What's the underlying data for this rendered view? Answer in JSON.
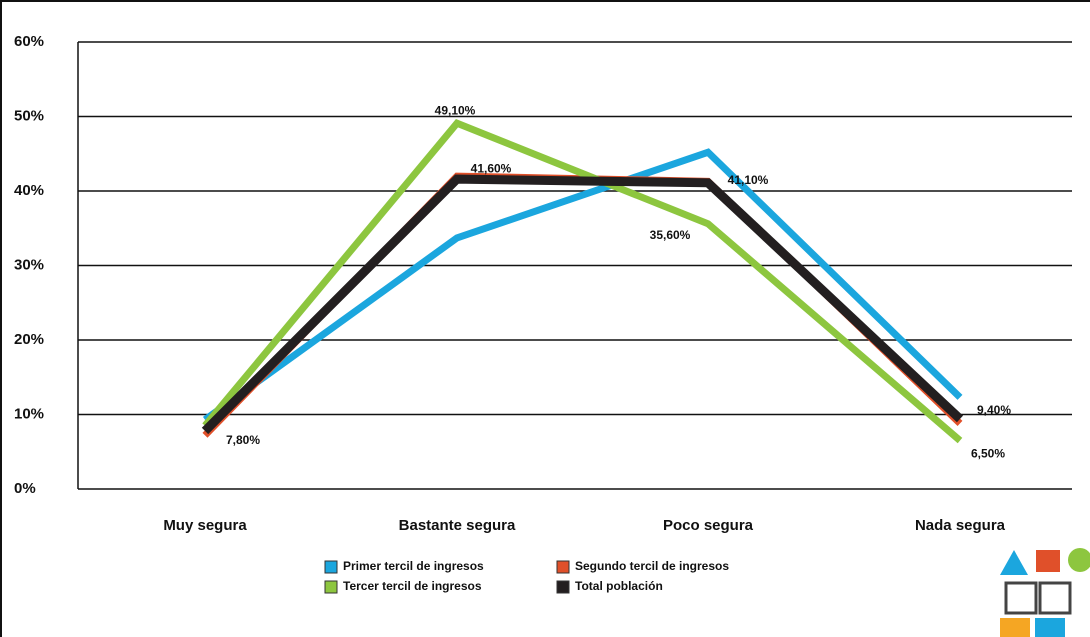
{
  "chart_data": {
    "type": "line",
    "categories": [
      "Muy segura",
      "Bastante segura",
      "Poco segura",
      "Nada segura"
    ],
    "series": [
      {
        "name": "Primer tercil de ingresos",
        "color": "#1ba6de",
        "values": [
          9.3,
          33.7,
          45.2,
          12.3
        ]
      },
      {
        "name": "Segundo tercil de ingresos",
        "color": "#e0502a",
        "values": [
          7.2,
          42.0,
          41.3,
          8.8
        ]
      },
      {
        "name": "Tercer tercil de ingresos",
        "color": "#8dc63f",
        "values": [
          8.5,
          49.1,
          35.6,
          6.5
        ],
        "value_labels": [
          null,
          "49,10%",
          "35,60%",
          "6,50%"
        ]
      },
      {
        "name": "Total población",
        "color": "#231f20",
        "values": [
          7.8,
          41.6,
          41.1,
          9.4
        ],
        "value_labels": [
          "7,80%",
          "41,60%",
          "41,10%",
          "9,40%"
        ]
      }
    ],
    "ylim": [
      0,
      60
    ],
    "yticks": [
      {
        "value": 0,
        "label": "0%"
      },
      {
        "value": 10,
        "label": "10%"
      },
      {
        "value": 20,
        "label": "20%"
      },
      {
        "value": 30,
        "label": "30%"
      },
      {
        "value": 40,
        "label": "40%"
      },
      {
        "value": 50,
        "label": "50%"
      },
      {
        "value": 60,
        "label": "60%"
      }
    ],
    "grid": true,
    "legend": "bottom"
  }
}
